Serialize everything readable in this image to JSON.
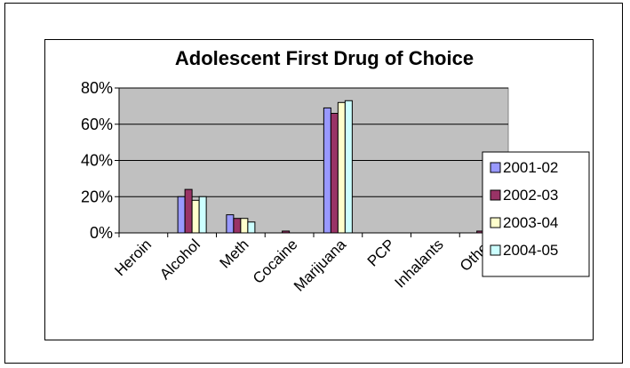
{
  "chart_data": {
    "type": "bar",
    "title": "Adolescent First Drug of Choice",
    "xlabel": "",
    "ylabel": "",
    "ylim": [
      0,
      0.8
    ],
    "yticks": [
      0,
      0.2,
      0.4,
      0.6,
      0.8
    ],
    "ytick_labels": [
      "0%",
      "20%",
      "40%",
      "60%",
      "80%"
    ],
    "grid": true,
    "legend_position": "right",
    "plot_background": "#c0c0c0",
    "categories": [
      "Heroin",
      "Alcohol",
      "Meth",
      "Cocaine",
      "Marijuana",
      "PCP",
      "Inhalants",
      "Other"
    ],
    "series": [
      {
        "name": "2001-02",
        "color": "#9999ff",
        "values": [
          0,
          0.2,
          0.1,
          0,
          0.69,
          0,
          0,
          0
        ]
      },
      {
        "name": "2002-03",
        "color": "#993366",
        "values": [
          0,
          0.24,
          0.08,
          0.01,
          0.66,
          0,
          0,
          0.01
        ]
      },
      {
        "name": "2003-04",
        "color": "#ffffcc",
        "values": [
          0,
          0.18,
          0.08,
          0,
          0.72,
          0,
          0,
          0.01
        ]
      },
      {
        "name": "2004-05",
        "color": "#ccffff",
        "values": [
          0,
          0.2,
          0.06,
          0,
          0.73,
          0,
          0,
          0
        ]
      }
    ]
  }
}
